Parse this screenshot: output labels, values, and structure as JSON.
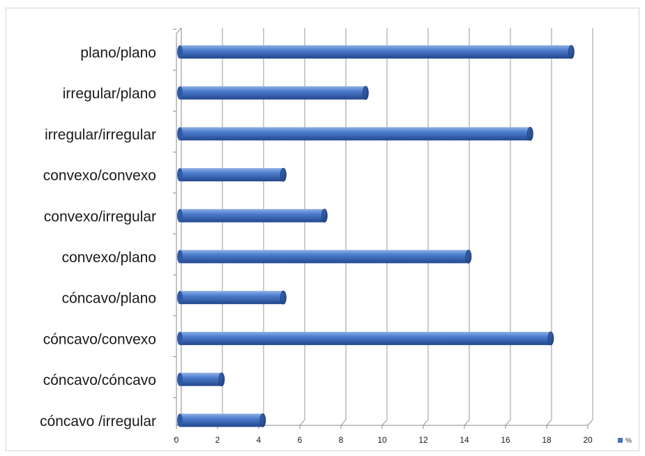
{
  "chart_data": {
    "type": "bar",
    "orientation": "horizontal",
    "style": "3d-cylinder",
    "categories": [
      "plano/plano",
      "irregular/plano",
      "irregular/irregular",
      "convexo/convexo",
      "convexo/irregular",
      "convexo/plano",
      "cóncavo/plano",
      "cóncavo/convexo",
      "cóncavo/cóncavo",
      "cóncavo /irregular"
    ],
    "series": [
      {
        "name": "%",
        "color": "#4472c4",
        "values": [
          19.2,
          9.2,
          17.2,
          5.2,
          7.2,
          14.2,
          5.2,
          18.2,
          2.2,
          4.2
        ]
      }
    ],
    "xlim": [
      0,
      20
    ],
    "x_ticks": [
      "0",
      "2",
      "4",
      "6",
      "8",
      "10",
      "12",
      "14",
      "16",
      "18",
      "20"
    ],
    "grid": true,
    "legend": "bottom-right"
  }
}
